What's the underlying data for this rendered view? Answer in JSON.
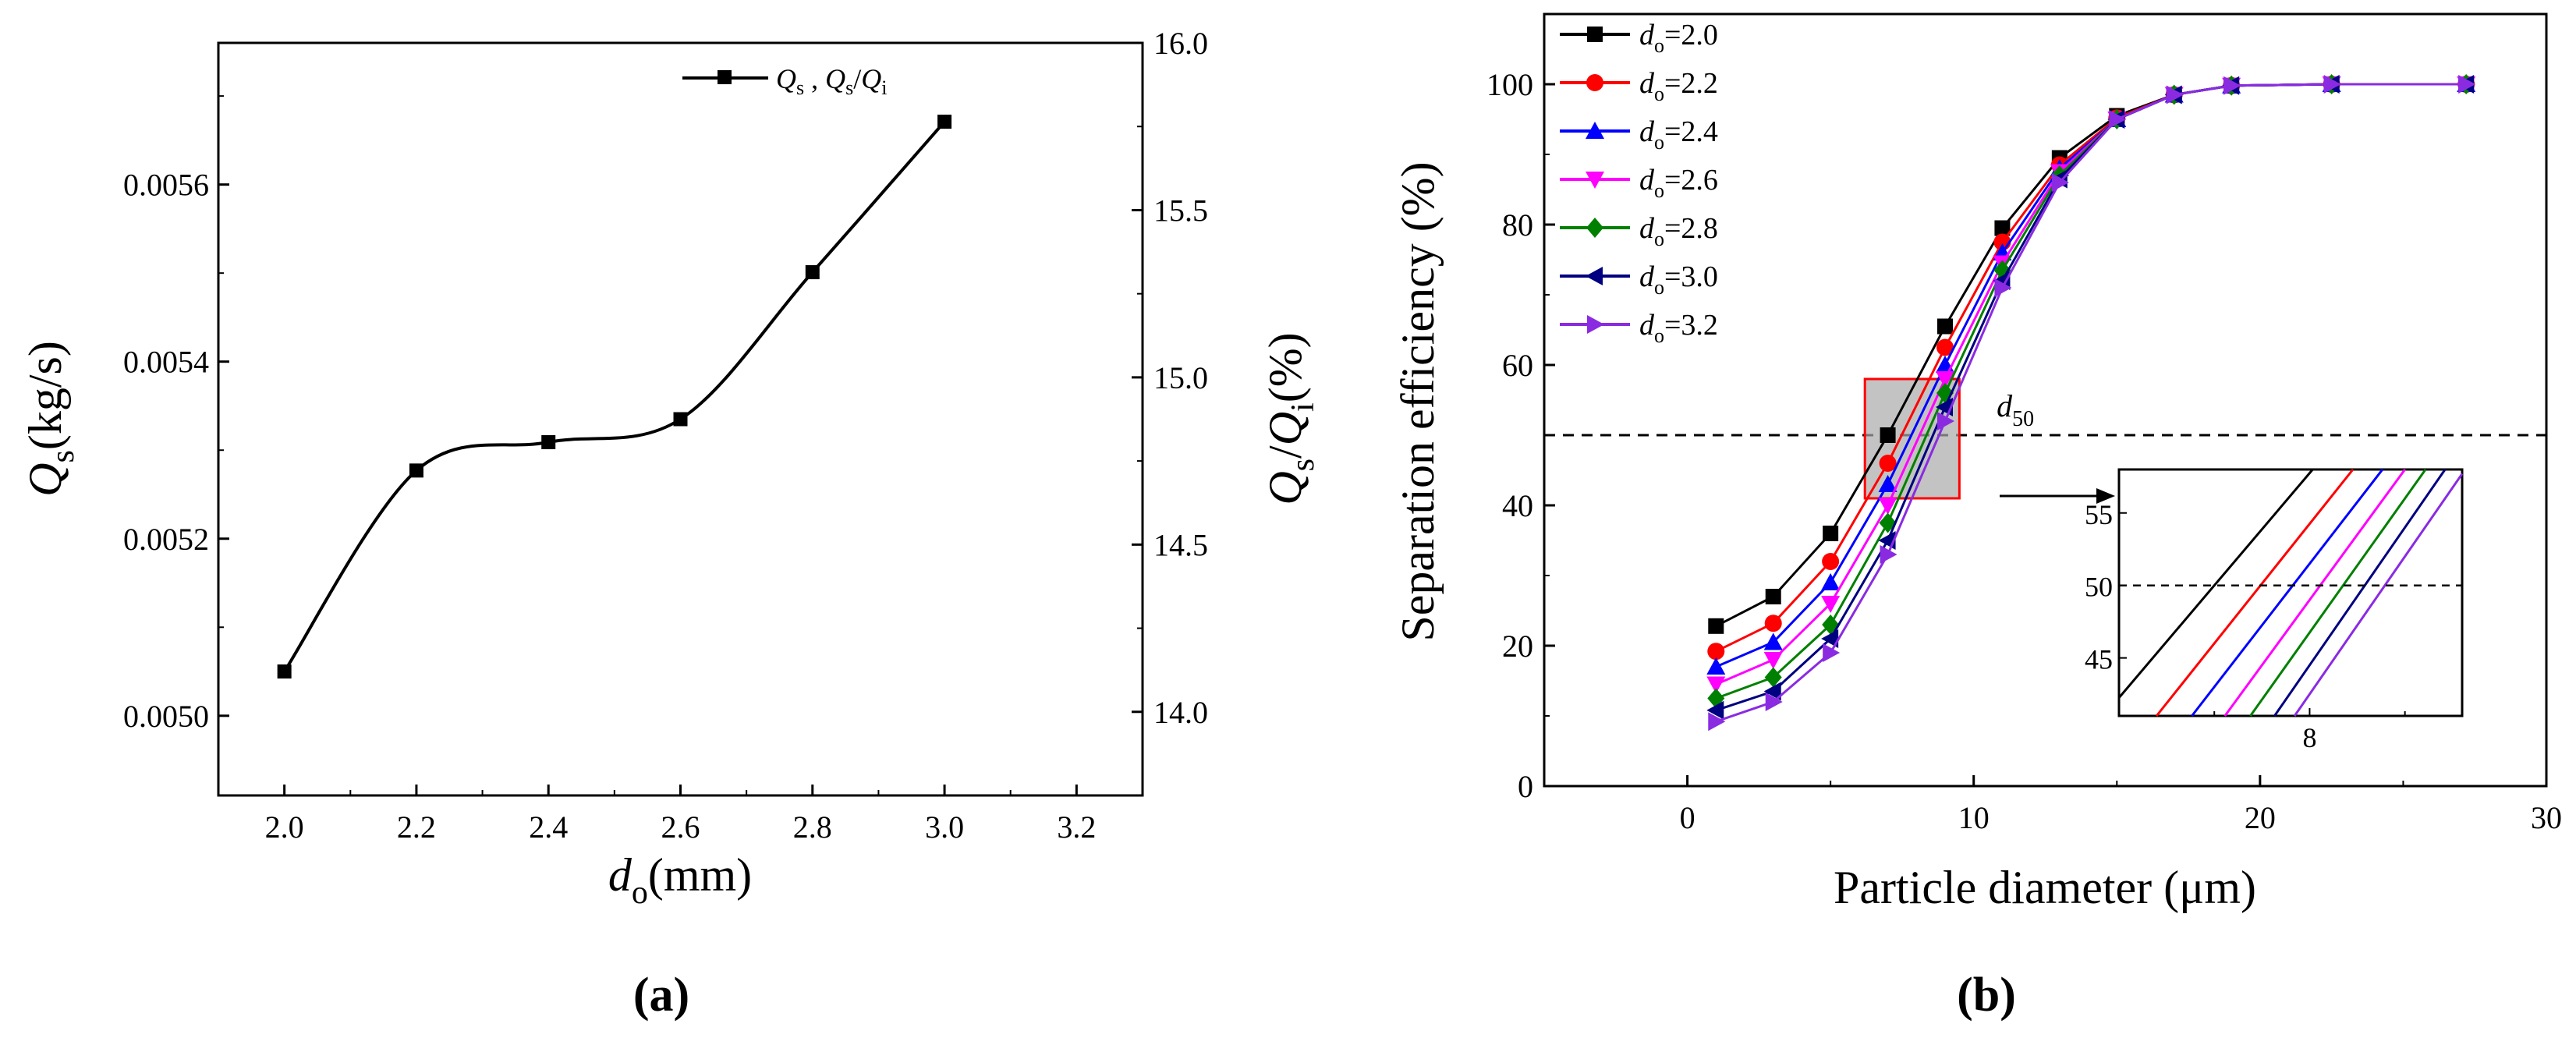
{
  "chart_data": [
    {
      "panel": "a",
      "caption": "(a)",
      "type": "line",
      "xlabel_base": "d",
      "xlabel_sub": "o",
      "xlabel_unit": "(mm)",
      "ylabel_base": "Q",
      "ylabel_sub": "s",
      "ylabel_unit": "(kg/s)",
      "y2label_q1": "Q",
      "y2label_s1": "s",
      "y2label_slash": "/",
      "y2label_q2": "Q",
      "y2label_s2": "i",
      "y2label_unit": "(%)",
      "legend": {
        "q": "Q",
        "s": "s",
        "sep": " , ",
        "q2": "Q",
        "s2": "s",
        "slash": "/",
        "q3": "Q",
        "s3": "i"
      },
      "xlim": [
        1.9,
        3.3
      ],
      "ylim": [
        0.00491,
        0.00576
      ],
      "y2lim": [
        13.75,
        16.0
      ],
      "xticks": [
        "2.0",
        "2.2",
        "2.4",
        "2.6",
        "2.8",
        "3.0",
        "3.2"
      ],
      "xtick_values": [
        2.0,
        2.2,
        2.4,
        2.6,
        2.8,
        3.0,
        3.2
      ],
      "yticks": [
        "0.0050",
        "0.0052",
        "0.0054",
        "0.0056"
      ],
      "ytick_values": [
        0.005,
        0.0052,
        0.0054,
        0.0056
      ],
      "y2ticks": [
        "14.0",
        "14.5",
        "15.0",
        "15.5",
        "16.0"
      ],
      "y2tick_values": [
        14.0,
        14.5,
        15.0,
        15.5,
        16.0
      ],
      "x": [
        2.0,
        2.2,
        2.4,
        2.6,
        2.8,
        3.0
      ],
      "y": [
        0.00505,
        0.005277,
        0.005309,
        0.005335,
        0.005501,
        0.005671
      ],
      "series_color": "#000000"
    },
    {
      "panel": "b",
      "caption": "(b)",
      "type": "line",
      "xlabel": "Particle diameter (μm)",
      "ylabel": "Separation efficiency (%)",
      "xlim": [
        -5,
        30
      ],
      "ylim": [
        0,
        110
      ],
      "xticks": [
        "0",
        "10",
        "20",
        "30"
      ],
      "xtick_values": [
        0,
        10,
        20,
        30
      ],
      "yticks": [
        "0",
        "20",
        "40",
        "60",
        "80",
        "100"
      ],
      "ytick_values": [
        0,
        20,
        40,
        60,
        80,
        100
      ],
      "reference_line": {
        "y": 50,
        "label_base": "d",
        "label_sub": "50"
      },
      "zoom_box": {
        "x_range": [
          6.2,
          9.5
        ],
        "y_range": [
          41,
          58
        ]
      },
      "x": [
        1,
        3,
        5,
        7,
        9,
        11,
        13,
        15,
        17,
        19,
        22.5,
        27.2
      ],
      "series": [
        {
          "label_base": "d",
          "label_sub": "o",
          "label_value": "=2.0",
          "color": "#000000",
          "marker": "square",
          "values": [
            22.8,
            27.0,
            36.0,
            50.0,
            65.5,
            79.5,
            89.5,
            95.5,
            98.5,
            99.8,
            100.0,
            100.0
          ]
        },
        {
          "label_base": "d",
          "label_sub": "o",
          "label_value": "=2.2",
          "color": "#ff0000",
          "marker": "circle",
          "values": [
            19.2,
            23.2,
            32.0,
            46.0,
            62.5,
            77.5,
            88.5,
            95.2,
            98.5,
            99.8,
            100.0,
            100.0
          ]
        },
        {
          "label_base": "d",
          "label_sub": "o",
          "label_value": "=2.4",
          "color": "#0000ff",
          "marker": "triangle-up",
          "values": [
            17.0,
            20.5,
            29.0,
            43.0,
            60.0,
            76.0,
            88.0,
            95.0,
            98.5,
            99.8,
            100.0,
            100.0
          ]
        },
        {
          "label_base": "d",
          "label_sub": "o",
          "label_value": "=2.6",
          "color": "#ff00ff",
          "marker": "triangle-down",
          "values": [
            14.5,
            18.0,
            26.0,
            40.0,
            58.0,
            74.5,
            87.5,
            95.0,
            98.5,
            99.8,
            100.0,
            100.0
          ]
        },
        {
          "label_base": "d",
          "label_sub": "o",
          "label_value": "=2.8",
          "color": "#008000",
          "marker": "diamond",
          "values": [
            12.5,
            15.5,
            23.0,
            37.5,
            56.0,
            73.5,
            87.0,
            95.0,
            98.5,
            99.8,
            100.0,
            100.0
          ]
        },
        {
          "label_base": "d",
          "label_sub": "o",
          "label_value": "=3.0",
          "color": "#000080",
          "marker": "triangle-left",
          "values": [
            10.8,
            13.5,
            21.0,
            35.0,
            54.0,
            72.0,
            86.5,
            95.0,
            98.5,
            99.8,
            100.0,
            100.0
          ]
        },
        {
          "label_base": "d",
          "label_sub": "o",
          "label_value": "=3.2",
          "color": "#8a2be2",
          "marker": "triangle-right",
          "values": [
            9.2,
            12.0,
            19.0,
            33.0,
            52.0,
            71.0,
            86.0,
            95.0,
            98.5,
            99.8,
            100.0,
            100.0
          ]
        }
      ],
      "inset": {
        "xlim": [
          6.0,
          9.6
        ],
        "ylim": [
          41,
          58
        ],
        "xticks": [
          "8"
        ],
        "xtick_values": [
          8
        ],
        "yticks": [
          "45",
          "50",
          "55"
        ],
        "ytick_values": [
          45,
          50,
          55
        ]
      }
    }
  ]
}
